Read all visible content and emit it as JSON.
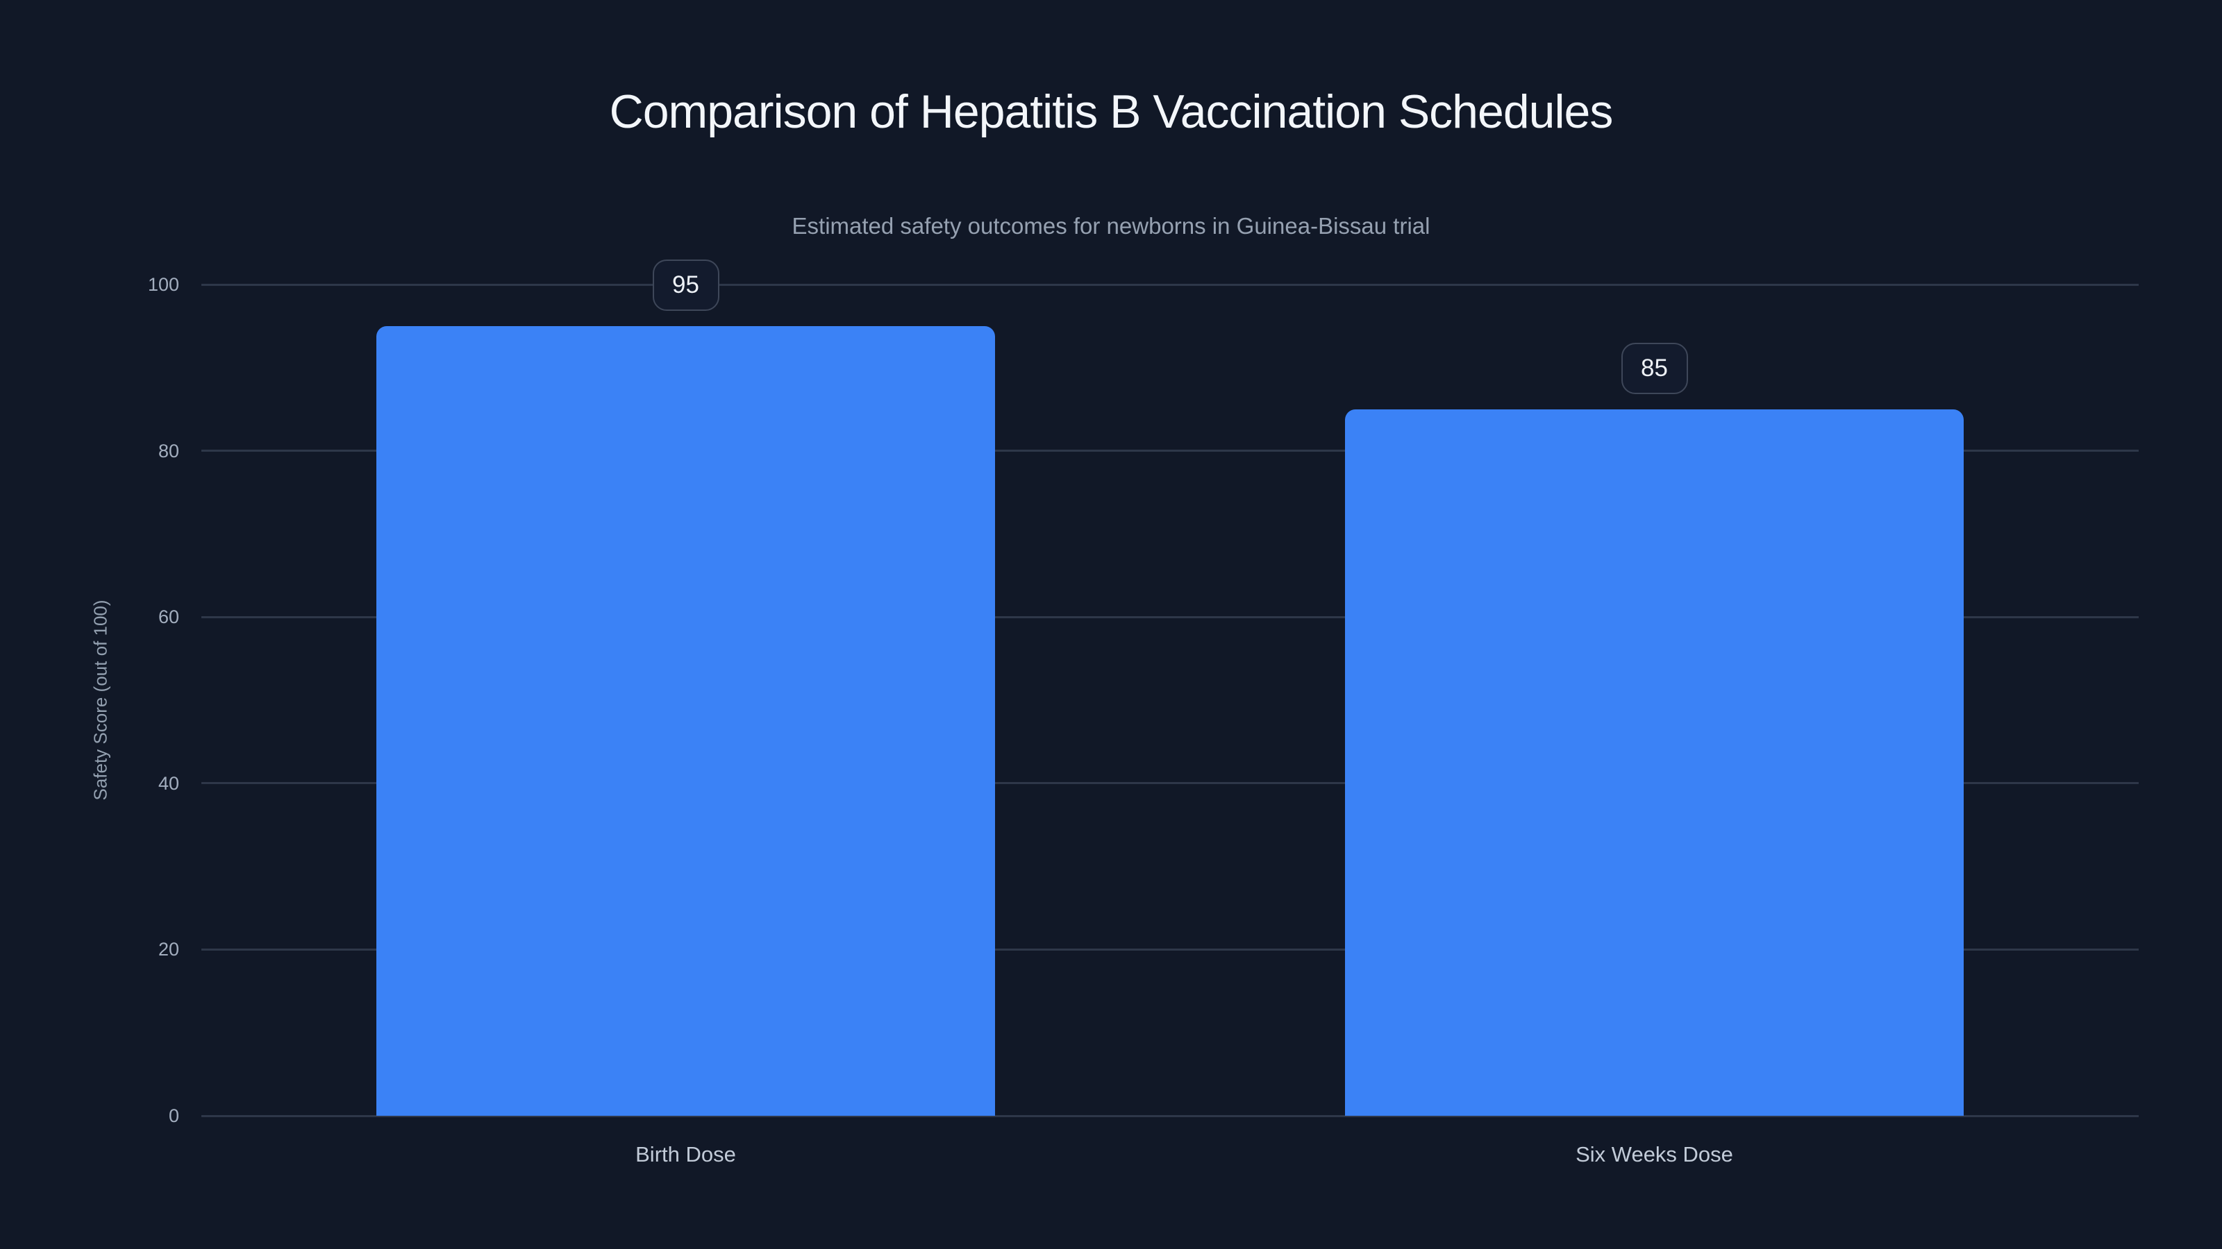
{
  "chart_data": {
    "type": "bar",
    "title": "Comparison of Hepatitis B Vaccination Schedules",
    "subtitle": "Estimated safety outcomes for newborns in Guinea-Bissau trial",
    "categories": [
      "Birth Dose",
      "Six Weeks Dose"
    ],
    "values": [
      95,
      85
    ],
    "data_labels": [
      "95",
      "85"
    ],
    "xlabel": "",
    "ylabel": "Safety Score (out of 100)",
    "ylim": [
      0,
      100
    ],
    "yticks": [
      0,
      20,
      40,
      60,
      80,
      100
    ],
    "grid": true,
    "legend": false
  },
  "colors": {
    "background": "#111827",
    "bar": "#3b82f6",
    "gridline": "#2e3749",
    "title": "#f3f6fa",
    "subtitle": "#96a1b1",
    "tick_label": "#a3aebf",
    "x_axis_label": "#c2cbd8",
    "y_axis_title": "#93a0b0",
    "badge_border": "#3e4759",
    "badge_background": "#131b2d",
    "badge_text": "#eef2f7"
  }
}
